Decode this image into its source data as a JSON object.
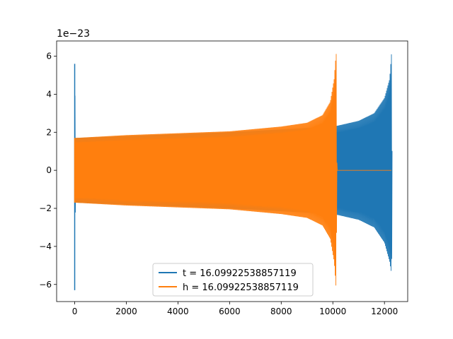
{
  "chart_data": {
    "type": "line",
    "title": "",
    "xlabel": "",
    "ylabel": "",
    "y_offset_label": "1e−23",
    "xlim": [
      -700,
      12900
    ],
    "ylim": [
      -6.9,
      6.8
    ],
    "x_ticks": [
      0,
      2000,
      4000,
      6000,
      8000,
      10000,
      12000
    ],
    "y_ticks": [
      -6,
      -4,
      -2,
      0,
      2,
      4,
      6
    ],
    "x_tick_labels": [
      "0",
      "2000",
      "4000",
      "6000",
      "8000",
      "10000",
      "12000"
    ],
    "y_tick_labels": [
      "−6",
      "−4",
      "−2",
      "0",
      "2",
      "4",
      "6"
    ],
    "grid": false,
    "legend_position": "lower-center",
    "series": [
      {
        "name": "t = 16.09922538857119",
        "color": "#1f77b4",
        "envelope": [
          {
            "x": 0,
            "upper": 5.6,
            "lower": -6.3
          },
          {
            "x": 30,
            "upper": 1.7,
            "lower": -1.7
          },
          {
            "x": 2000,
            "upper": 1.8,
            "lower": -1.8
          },
          {
            "x": 4000,
            "upper": 1.9,
            "lower": -1.9
          },
          {
            "x": 6000,
            "upper": 2.0,
            "lower": -2.0
          },
          {
            "x": 8000,
            "upper": 2.15,
            "lower": -2.15
          },
          {
            "x": 10000,
            "upper": 2.3,
            "lower": -2.3
          },
          {
            "x": 10200,
            "upper": 2.35,
            "lower": -2.35
          },
          {
            "x": 11000,
            "upper": 2.6,
            "lower": -2.6
          },
          {
            "x": 11600,
            "upper": 3.0,
            "lower": -3.0
          },
          {
            "x": 12000,
            "upper": 3.8,
            "lower": -3.8
          },
          {
            "x": 12200,
            "upper": 4.8,
            "lower": -4.8
          },
          {
            "x": 12280,
            "upper": 6.3,
            "lower": -5.5
          },
          {
            "x": 12300,
            "upper": 0.0,
            "lower": 0.0
          }
        ]
      },
      {
        "name": "h = 16.09922538857119",
        "color": "#ff7f0e",
        "envelope": [
          {
            "x": 0,
            "upper": 1.7,
            "lower": -1.7
          },
          {
            "x": 2000,
            "upper": 1.85,
            "lower": -1.85
          },
          {
            "x": 4000,
            "upper": 1.95,
            "lower": -1.95
          },
          {
            "x": 6000,
            "upper": 2.05,
            "lower": -2.05
          },
          {
            "x": 8000,
            "upper": 2.3,
            "lower": -2.3
          },
          {
            "x": 9000,
            "upper": 2.5,
            "lower": -2.5
          },
          {
            "x": 9600,
            "upper": 2.9,
            "lower": -2.9
          },
          {
            "x": 9900,
            "upper": 3.6,
            "lower": -3.6
          },
          {
            "x": 10050,
            "upper": 4.8,
            "lower": -4.8
          },
          {
            "x": 10130,
            "upper": 6.25,
            "lower": -6.3
          },
          {
            "x": 10160,
            "upper": 0.0,
            "lower": 0.0
          },
          {
            "x": 12280,
            "upper": 0.0,
            "lower": 0.0
          }
        ]
      }
    ]
  }
}
